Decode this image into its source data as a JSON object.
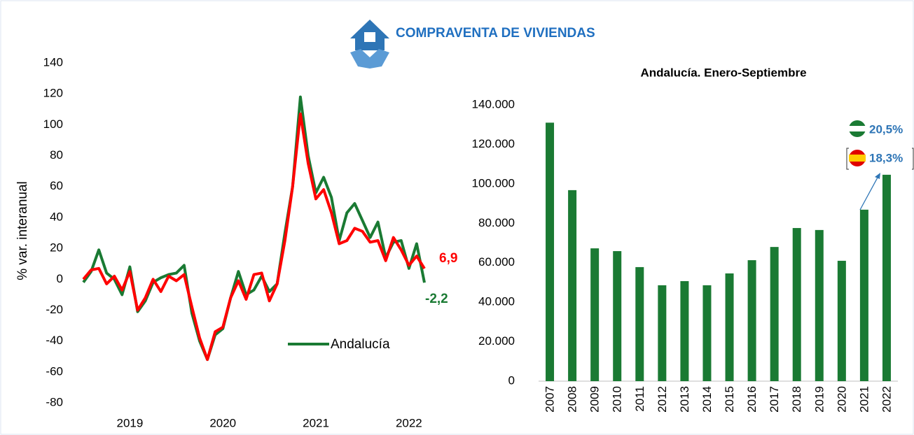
{
  "header": {
    "title": "COMPRAVENTA DE VIVIENDAS"
  },
  "chart_data": [
    {
      "type": "line",
      "ylabel": "% var. interanual",
      "categories": [
        null,
        null,
        null,
        null,
        null,
        null,
        "2019",
        null,
        null,
        null,
        null,
        null,
        null,
        null,
        null,
        null,
        null,
        null,
        "2020",
        null,
        null,
        null,
        null,
        null,
        null,
        null,
        null,
        null,
        null,
        null,
        "2021",
        null,
        null,
        null,
        null,
        null,
        null,
        null,
        null,
        null,
        null,
        null,
        "2022",
        null,
        null
      ],
      "ylim": [
        -80,
        140
      ],
      "yticks": [
        -80,
        -60,
        -40,
        -20,
        0,
        20,
        40,
        60,
        80,
        100,
        120,
        140
      ],
      "legend": "lower right",
      "series": [
        {
          "name": "Andalucía",
          "color": "#1a7a33",
          "values": [
            -2,
            5,
            19,
            4,
            0,
            -10,
            8,
            -21,
            -14,
            -2,
            1,
            3,
            4,
            9,
            -22,
            -40,
            -52,
            -36,
            -32,
            -12,
            5,
            -10,
            -7,
            2,
            -8,
            -3,
            30,
            60,
            118,
            80,
            56,
            66,
            53,
            25,
            43,
            49,
            38,
            27,
            37,
            14,
            24,
            25,
            7,
            23,
            -2.2
          ],
          "value_labels": [
            null,
            null,
            null,
            null,
            null,
            null,
            null,
            null,
            null,
            null,
            null,
            null,
            null,
            null,
            null,
            null,
            null,
            null,
            null,
            null,
            null,
            null,
            null,
            null,
            null,
            null,
            null,
            null,
            null,
            null,
            null,
            null,
            null,
            null,
            null,
            null,
            null,
            null,
            null,
            null,
            null,
            null,
            null,
            null,
            "-2,2"
          ]
        },
        {
          "color": "#ff0000",
          "values": [
            0,
            6,
            7,
            -3,
            2,
            -7,
            5,
            -20,
            -12,
            0,
            -8,
            2,
            -1,
            3,
            -18,
            -38,
            -52,
            -34,
            -31,
            -12,
            -1,
            -13,
            3,
            4,
            -14,
            -3,
            25,
            60,
            107,
            75,
            52,
            58,
            43,
            23,
            25,
            33,
            31,
            24,
            25,
            12,
            27,
            19,
            9,
            15,
            6.9
          ],
          "value_labels": [
            null,
            null,
            null,
            null,
            null,
            null,
            null,
            null,
            null,
            null,
            null,
            null,
            null,
            null,
            null,
            null,
            null,
            null,
            null,
            null,
            null,
            null,
            null,
            null,
            null,
            null,
            null,
            null,
            null,
            null,
            null,
            null,
            null,
            null,
            null,
            null,
            null,
            null,
            null,
            null,
            null,
            null,
            null,
            null,
            "6,9"
          ]
        }
      ]
    },
    {
      "type": "bar",
      "title": "Andalucía. Enero-Septiembre",
      "categories": [
        "2007",
        "2008",
        "2009",
        "2010",
        "2011",
        "2012",
        "2013",
        "2014",
        "2015",
        "2016",
        "2017",
        "2018",
        "2019",
        "2020",
        "2021",
        "2022"
      ],
      "values": [
        131000,
        96800,
        67300,
        65900,
        57800,
        48600,
        50700,
        48600,
        54600,
        61300,
        68000,
        77600,
        76600,
        61000,
        86900,
        104600
      ],
      "color": "#1a7a33",
      "ylim": [
        0,
        140000
      ],
      "yticks": [
        0,
        {
          "value": 20000,
          "label": "20.000"
        },
        {
          "value": 40000,
          "label": "40.000"
        },
        {
          "value": 60000,
          "label": "60.000"
        },
        {
          "value": 80000,
          "label": "80.000"
        },
        {
          "value": 100000,
          "label": "100.000"
        },
        {
          "value": 120000,
          "label": "120.000"
        },
        {
          "value": 140000,
          "label": "140.000"
        }
      ],
      "annotations": [
        "20,5%",
        "18,3%"
      ]
    }
  ]
}
